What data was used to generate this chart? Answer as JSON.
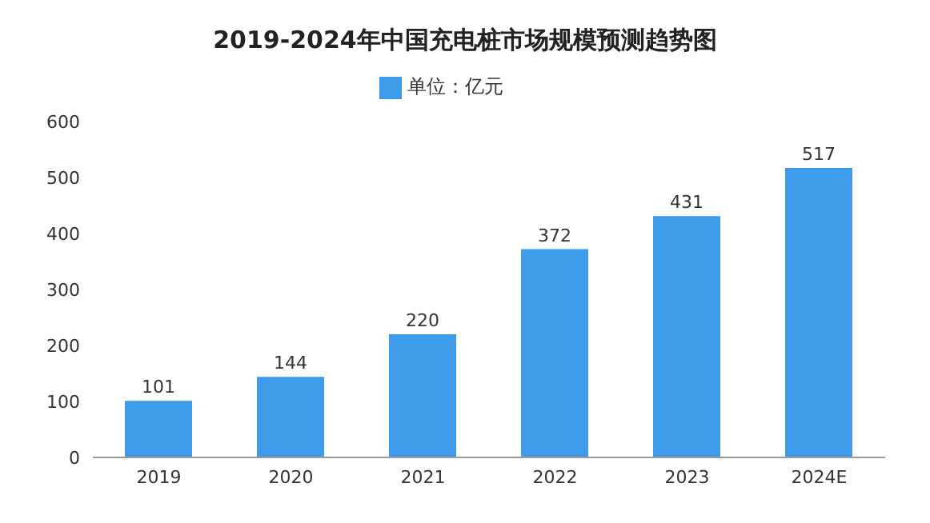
{
  "chart_data": {
    "type": "bar",
    "title": "2019-2024年中国充电桩市场规模预测趋势图",
    "categories": [
      "2019",
      "2020",
      "2021",
      "2022",
      "2023",
      "2024E"
    ],
    "series": [
      {
        "name": "单位：亿元",
        "color": "#3d9be9",
        "values": [
          101,
          144,
          220,
          372,
          431,
          517
        ]
      }
    ],
    "ylim": [
      0,
      600
    ],
    "yticks": [
      0,
      100,
      200,
      300,
      400,
      500,
      600
    ],
    "grid": false,
    "legend": "top",
    "data_labels": true
  }
}
